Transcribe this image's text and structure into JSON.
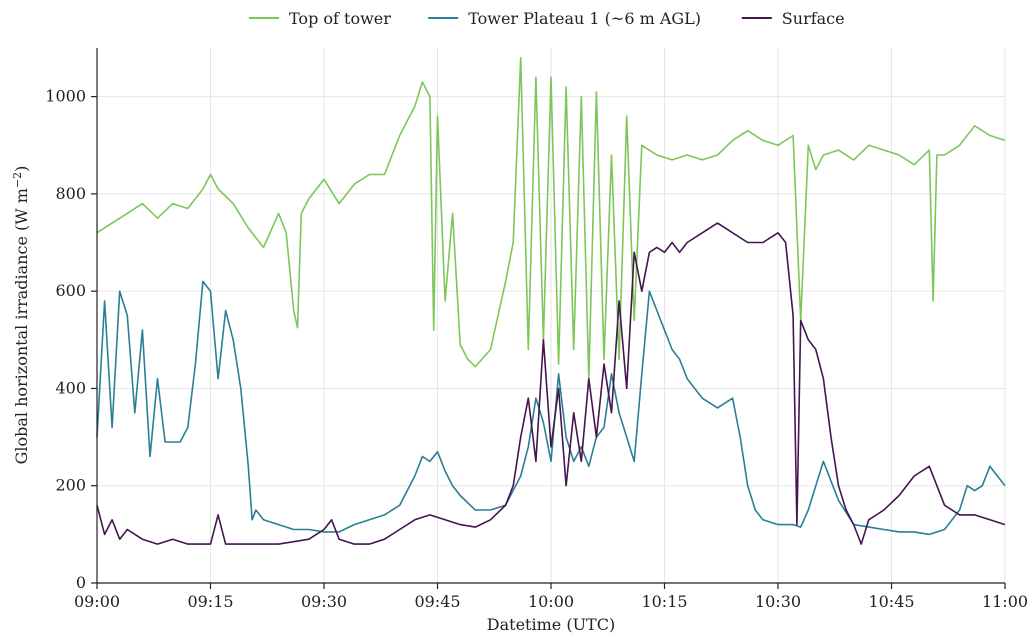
{
  "chart_data": {
    "type": "line",
    "title": "",
    "xlabel": "Datetime (UTC)",
    "ylabel": "Global horizontal irradiance (W m",
    "ylabel_sup": "−2",
    "ylabel_close": ")",
    "xlim": [
      0,
      120
    ],
    "ylim": [
      0,
      1100
    ],
    "x_ticks": [
      {
        "value": 0,
        "label": "09:00"
      },
      {
        "value": 15,
        "label": "09:15"
      },
      {
        "value": 30,
        "label": "09:30"
      },
      {
        "value": 45,
        "label": "09:45"
      },
      {
        "value": 60,
        "label": "10:00"
      },
      {
        "value": 75,
        "label": "10:15"
      },
      {
        "value": 90,
        "label": "10:30"
      },
      {
        "value": 105,
        "label": "10:45"
      },
      {
        "value": 120,
        "label": "11:00"
      }
    ],
    "y_ticks": [
      0,
      200,
      400,
      600,
      800,
      1000
    ],
    "grid": true,
    "legend_position": "top-center",
    "series": [
      {
        "name": "Top of tower",
        "color": "#7cc65a",
        "x": [
          0,
          2,
          4,
          6,
          8,
          10,
          12,
          14,
          15,
          16,
          18,
          20,
          22,
          24,
          25,
          26,
          26.5,
          27,
          28,
          30,
          32,
          34,
          36,
          38,
          40,
          42,
          43,
          44,
          44.5,
          45,
          46,
          47,
          48,
          49,
          50,
          52,
          54,
          55,
          56,
          57,
          58,
          59,
          60,
          61,
          62,
          63,
          64,
          65,
          66,
          67,
          68,
          69,
          70,
          71,
          72,
          74,
          76,
          78,
          80,
          82,
          84,
          86,
          88,
          90,
          92,
          93,
          94,
          95,
          96,
          98,
          100,
          102,
          104,
          106,
          108,
          110,
          110.5,
          111,
          112,
          114,
          116,
          118,
          120
        ],
        "y": [
          720,
          740,
          760,
          780,
          750,
          780,
          770,
          810,
          840,
          810,
          780,
          730,
          690,
          760,
          720,
          560,
          525,
          760,
          790,
          830,
          780,
          820,
          840,
          840,
          920,
          980,
          1030,
          1000,
          520,
          960,
          580,
          760,
          490,
          460,
          445,
          480,
          620,
          700,
          1080,
          480,
          1040,
          500,
          1040,
          450,
          1020,
          480,
          1000,
          420,
          1010,
          460,
          880,
          460,
          960,
          540,
          900,
          880,
          870,
          880,
          870,
          880,
          910,
          930,
          910,
          900,
          920,
          540,
          900,
          850,
          880,
          890,
          870,
          900,
          890,
          880,
          860,
          890,
          580,
          880,
          880,
          900,
          940,
          920,
          910
        ]
      },
      {
        "name": "Tower Plateau 1 (~6 m AGL)",
        "color": "#2a7f96",
        "x": [
          0,
          1,
          2,
          3,
          4,
          5,
          6,
          7,
          8,
          9,
          10,
          11,
          12,
          13,
          14,
          15,
          16,
          17,
          18,
          19,
          20,
          20.5,
          21,
          22,
          24,
          26,
          28,
          30,
          32,
          34,
          36,
          38,
          40,
          42,
          43,
          44,
          45,
          46,
          47,
          48,
          50,
          52,
          54,
          56,
          57,
          58,
          59,
          60,
          61,
          62,
          63,
          64,
          65,
          66,
          67,
          68,
          69,
          70,
          71,
          72,
          73,
          74,
          75,
          76,
          77,
          78,
          80,
          82,
          84,
          85,
          86,
          87,
          88,
          90,
          92,
          93,
          94,
          95,
          96,
          98,
          100,
          102,
          104,
          106,
          108,
          110,
          112,
          114,
          115,
          116,
          117,
          118,
          119,
          120
        ],
        "y": [
          300,
          580,
          320,
          600,
          550,
          350,
          520,
          260,
          420,
          290,
          290,
          290,
          320,
          450,
          620,
          600,
          420,
          560,
          500,
          400,
          240,
          130,
          150,
          130,
          120,
          110,
          110,
          105,
          105,
          120,
          130,
          140,
          160,
          220,
          260,
          250,
          270,
          230,
          200,
          180,
          150,
          150,
          160,
          220,
          280,
          380,
          330,
          250,
          430,
          300,
          250,
          280,
          240,
          300,
          320,
          430,
          350,
          300,
          250,
          430,
          600,
          560,
          520,
          480,
          460,
          420,
          380,
          360,
          380,
          300,
          200,
          150,
          130,
          120,
          120,
          115,
          150,
          200,
          250,
          170,
          120,
          115,
          110,
          105,
          105,
          100,
          110,
          150,
          200,
          190,
          200,
          240,
          220,
          200
        ]
      },
      {
        "name": "Surface",
        "color": "#44154f",
        "x": [
          0,
          1,
          2,
          3,
          4,
          6,
          8,
          10,
          12,
          14,
          15,
          16,
          17,
          18,
          20,
          22,
          24,
          26,
          28,
          30,
          31,
          32,
          34,
          36,
          38,
          40,
          42,
          44,
          46,
          48,
          50,
          52,
          54,
          55,
          56,
          57,
          58,
          59,
          60,
          61,
          62,
          63,
          64,
          65,
          66,
          67,
          68,
          69,
          70,
          71,
          72,
          73,
          74,
          75,
          76,
          77,
          78,
          80,
          82,
          84,
          86,
          88,
          90,
          91,
          92,
          92.5,
          93,
          94,
          95,
          96,
          97,
          98,
          99,
          100,
          101,
          102,
          104,
          106,
          108,
          110,
          112,
          114,
          116,
          118,
          120
        ],
        "y": [
          160,
          100,
          130,
          90,
          110,
          90,
          80,
          90,
          80,
          80,
          80,
          140,
          80,
          80,
          80,
          80,
          80,
          85,
          90,
          110,
          130,
          90,
          80,
          80,
          90,
          110,
          130,
          140,
          130,
          120,
          115,
          130,
          160,
          200,
          300,
          380,
          250,
          500,
          280,
          400,
          200,
          350,
          250,
          420,
          300,
          450,
          350,
          580,
          400,
          680,
          600,
          680,
          690,
          680,
          700,
          680,
          700,
          720,
          740,
          720,
          700,
          700,
          720,
          700,
          550,
          120,
          540,
          500,
          480,
          420,
          300,
          200,
          150,
          120,
          80,
          130,
          150,
          180,
          220,
          240,
          160,
          140,
          140,
          130,
          120
        ]
      }
    ]
  }
}
